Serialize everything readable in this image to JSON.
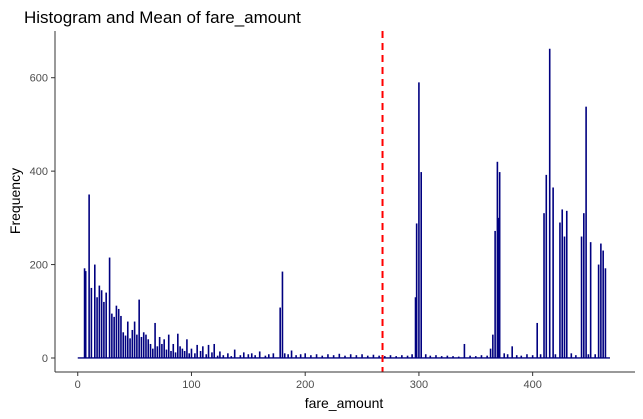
{
  "chart_data": {
    "type": "bar",
    "title": "Histogram and Mean of  fare_amount",
    "xlabel": "fare_amount",
    "ylabel": "Frequency",
    "xlim": [
      -20,
      490
    ],
    "ylim": [
      -30,
      700
    ],
    "x_ticks": [
      0,
      100,
      200,
      300,
      400
    ],
    "y_ticks": [
      0,
      200,
      400,
      600
    ],
    "mean_line": {
      "x": 268,
      "color": "#ff0000",
      "style": "dashed"
    },
    "bar_color": "#000080",
    "bars": [
      {
        "x": 6,
        "y": 192
      },
      {
        "x": 7,
        "y": 186
      },
      {
        "x": 10,
        "y": 350
      },
      {
        "x": 12,
        "y": 150
      },
      {
        "x": 15,
        "y": 200
      },
      {
        "x": 17,
        "y": 130
      },
      {
        "x": 19,
        "y": 155
      },
      {
        "x": 21,
        "y": 145
      },
      {
        "x": 23,
        "y": 120
      },
      {
        "x": 25,
        "y": 140
      },
      {
        "x": 28,
        "y": 215
      },
      {
        "x": 30,
        "y": 95
      },
      {
        "x": 32,
        "y": 88
      },
      {
        "x": 34,
        "y": 112
      },
      {
        "x": 36,
        "y": 105
      },
      {
        "x": 38,
        "y": 90
      },
      {
        "x": 40,
        "y": 55
      },
      {
        "x": 42,
        "y": 48
      },
      {
        "x": 44,
        "y": 78
      },
      {
        "x": 46,
        "y": 42
      },
      {
        "x": 48,
        "y": 60
      },
      {
        "x": 50,
        "y": 78
      },
      {
        "x": 52,
        "y": 50
      },
      {
        "x": 54,
        "y": 125
      },
      {
        "x": 56,
        "y": 45
      },
      {
        "x": 58,
        "y": 55
      },
      {
        "x": 60,
        "y": 50
      },
      {
        "x": 62,
        "y": 40
      },
      {
        "x": 64,
        "y": 30
      },
      {
        "x": 66,
        "y": 20
      },
      {
        "x": 68,
        "y": 75
      },
      {
        "x": 70,
        "y": 25
      },
      {
        "x": 72,
        "y": 45
      },
      {
        "x": 74,
        "y": 30
      },
      {
        "x": 76,
        "y": 40
      },
      {
        "x": 78,
        "y": 18
      },
      {
        "x": 80,
        "y": 50
      },
      {
        "x": 82,
        "y": 15
      },
      {
        "x": 84,
        "y": 30
      },
      {
        "x": 86,
        "y": 12
      },
      {
        "x": 88,
        "y": 52
      },
      {
        "x": 90,
        "y": 25
      },
      {
        "x": 92,
        "y": 20
      },
      {
        "x": 94,
        "y": 15
      },
      {
        "x": 96,
        "y": 40
      },
      {
        "x": 98,
        "y": 10
      },
      {
        "x": 100,
        "y": 20
      },
      {
        "x": 103,
        "y": 10
      },
      {
        "x": 105,
        "y": 28
      },
      {
        "x": 108,
        "y": 15
      },
      {
        "x": 110,
        "y": 25
      },
      {
        "x": 113,
        "y": 8
      },
      {
        "x": 115,
        "y": 28
      },
      {
        "x": 118,
        "y": 12
      },
      {
        "x": 120,
        "y": 30
      },
      {
        "x": 123,
        "y": 5
      },
      {
        "x": 125,
        "y": 14
      },
      {
        "x": 128,
        "y": 6
      },
      {
        "x": 132,
        "y": 10
      },
      {
        "x": 135,
        "y": 4
      },
      {
        "x": 138,
        "y": 18
      },
      {
        "x": 143,
        "y": 6
      },
      {
        "x": 146,
        "y": 12
      },
      {
        "x": 150,
        "y": 8
      },
      {
        "x": 153,
        "y": 10
      },
      {
        "x": 156,
        "y": 6
      },
      {
        "x": 160,
        "y": 14
      },
      {
        "x": 165,
        "y": 5
      },
      {
        "x": 168,
        "y": 8
      },
      {
        "x": 172,
        "y": 10
      },
      {
        "x": 178,
        "y": 108
      },
      {
        "x": 180,
        "y": 185
      },
      {
        "x": 182,
        "y": 10
      },
      {
        "x": 185,
        "y": 8
      },
      {
        "x": 188,
        "y": 16
      },
      {
        "x": 192,
        "y": 6
      },
      {
        "x": 196,
        "y": 8
      },
      {
        "x": 200,
        "y": 10
      },
      {
        "x": 205,
        "y": 6
      },
      {
        "x": 210,
        "y": 8
      },
      {
        "x": 215,
        "y": 5
      },
      {
        "x": 220,
        "y": 8
      },
      {
        "x": 225,
        "y": 6
      },
      {
        "x": 230,
        "y": 9
      },
      {
        "x": 235,
        "y": 5
      },
      {
        "x": 240,
        "y": 8
      },
      {
        "x": 245,
        "y": 6
      },
      {
        "x": 250,
        "y": 8
      },
      {
        "x": 255,
        "y": 5
      },
      {
        "x": 260,
        "y": 7
      },
      {
        "x": 265,
        "y": 5
      },
      {
        "x": 270,
        "y": 4
      },
      {
        "x": 275,
        "y": 6
      },
      {
        "x": 280,
        "y": 4
      },
      {
        "x": 285,
        "y": 6
      },
      {
        "x": 290,
        "y": 5
      },
      {
        "x": 294,
        "y": 8
      },
      {
        "x": 297,
        "y": 130
      },
      {
        "x": 298,
        "y": 288
      },
      {
        "x": 300,
        "y": 590
      },
      {
        "x": 302,
        "y": 398
      },
      {
        "x": 306,
        "y": 8
      },
      {
        "x": 310,
        "y": 5
      },
      {
        "x": 315,
        "y": 6
      },
      {
        "x": 320,
        "y": 4
      },
      {
        "x": 325,
        "y": 5
      },
      {
        "x": 330,
        "y": 4
      },
      {
        "x": 335,
        "y": 3
      },
      {
        "x": 340,
        "y": 30
      },
      {
        "x": 345,
        "y": 5
      },
      {
        "x": 350,
        "y": 4
      },
      {
        "x": 355,
        "y": 6
      },
      {
        "x": 360,
        "y": 5
      },
      {
        "x": 363,
        "y": 20
      },
      {
        "x": 365,
        "y": 50
      },
      {
        "x": 367,
        "y": 272
      },
      {
        "x": 369,
        "y": 420
      },
      {
        "x": 370,
        "y": 300
      },
      {
        "x": 371,
        "y": 398
      },
      {
        "x": 375,
        "y": 10
      },
      {
        "x": 378,
        "y": 8
      },
      {
        "x": 382,
        "y": 25
      },
      {
        "x": 386,
        "y": 6
      },
      {
        "x": 390,
        "y": 5
      },
      {
        "x": 395,
        "y": 8
      },
      {
        "x": 400,
        "y": 6
      },
      {
        "x": 404,
        "y": 75
      },
      {
        "x": 407,
        "y": 8
      },
      {
        "x": 410,
        "y": 310
      },
      {
        "x": 412,
        "y": 392
      },
      {
        "x": 415,
        "y": 662
      },
      {
        "x": 418,
        "y": 365
      },
      {
        "x": 420,
        "y": 8
      },
      {
        "x": 424,
        "y": 290
      },
      {
        "x": 426,
        "y": 318
      },
      {
        "x": 428,
        "y": 260
      },
      {
        "x": 430,
        "y": 315
      },
      {
        "x": 434,
        "y": 10
      },
      {
        "x": 438,
        "y": 6
      },
      {
        "x": 443,
        "y": 260
      },
      {
        "x": 445,
        "y": 310
      },
      {
        "x": 447,
        "y": 538
      },
      {
        "x": 449,
        "y": 8
      },
      {
        "x": 451,
        "y": 248
      },
      {
        "x": 455,
        "y": 8
      },
      {
        "x": 458,
        "y": 200
      },
      {
        "x": 460,
        "y": 245
      },
      {
        "x": 462,
        "y": 230
      },
      {
        "x": 464,
        "y": 192
      }
    ]
  }
}
